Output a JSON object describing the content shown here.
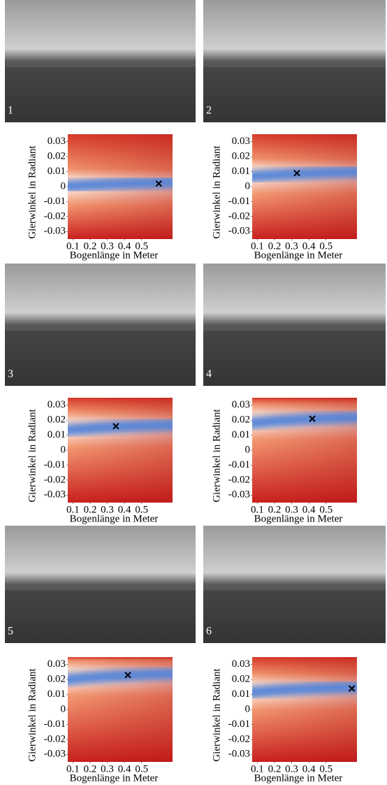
{
  "chart_data": [
    {
      "type": "heatmap",
      "panel_label": "1",
      "xlabel": "Bogenlänge in Meter",
      "ylabel": "Gierwinkel in Radiant",
      "xlim": [
        0.07,
        0.68
      ],
      "ylim": [
        -0.035,
        0.035
      ],
      "xticks": [
        0.1,
        0.2,
        0.3,
        0.4,
        0.5
      ],
      "yticks": [
        0.03,
        0.02,
        0.01,
        0,
        -0.01,
        -0.02,
        -0.03
      ],
      "marker": {
        "x": 0.6,
        "y": 0.002
      }
    },
    {
      "type": "heatmap",
      "panel_label": "2",
      "xlabel": "Bogenlänge in Meter",
      "ylabel": "Gierwinkel in Radiant",
      "xlim": [
        0.07,
        0.68
      ],
      "ylim": [
        -0.035,
        0.035
      ],
      "xticks": [
        0.1,
        0.2,
        0.3,
        0.4,
        0.5
      ],
      "yticks": [
        0.03,
        0.02,
        0.01,
        0,
        -0.01,
        -0.02,
        -0.03
      ],
      "marker": {
        "x": 0.33,
        "y": 0.009
      }
    },
    {
      "type": "heatmap",
      "panel_label": "3",
      "xlabel": "Bogenlänge in Meter",
      "ylabel": "Gierwinkel in Radiant",
      "xlim": [
        0.07,
        0.68
      ],
      "ylim": [
        -0.035,
        0.035
      ],
      "xticks": [
        0.1,
        0.2,
        0.3,
        0.4,
        0.5
      ],
      "yticks": [
        0.03,
        0.02,
        0.01,
        0,
        -0.01,
        -0.02,
        -0.03
      ],
      "marker": {
        "x": 0.35,
        "y": 0.016
      }
    },
    {
      "type": "heatmap",
      "panel_label": "4",
      "xlabel": "Bogenlänge in Meter",
      "ylabel": "Gierwinkel in Radiant",
      "xlim": [
        0.07,
        0.68
      ],
      "ylim": [
        -0.035,
        0.035
      ],
      "xticks": [
        0.1,
        0.2,
        0.3,
        0.4,
        0.5
      ],
      "yticks": [
        0.03,
        0.02,
        0.01,
        0,
        -0.01,
        -0.02,
        -0.03
      ],
      "marker": {
        "x": 0.42,
        "y": 0.021
      }
    },
    {
      "type": "heatmap",
      "panel_label": "5",
      "xlabel": "Bogenlänge in Meter",
      "ylabel": "Gierwinkel in Radiant",
      "xlim": [
        0.07,
        0.68
      ],
      "ylim": [
        -0.035,
        0.035
      ],
      "xticks": [
        0.1,
        0.2,
        0.3,
        0.4,
        0.5
      ],
      "yticks": [
        0.03,
        0.02,
        0.01,
        0,
        -0.01,
        -0.02,
        -0.03
      ],
      "marker": {
        "x": 0.42,
        "y": 0.023
      }
    },
    {
      "type": "heatmap",
      "panel_label": "6",
      "xlabel": "Bogenlänge in Meter",
      "ylabel": "Gierwinkel in Radiant",
      "xlim": [
        0.07,
        0.68
      ],
      "ylim": [
        -0.035,
        0.035
      ],
      "xticks": [
        0.1,
        0.2,
        0.3,
        0.4,
        0.5
      ],
      "yticks": [
        0.03,
        0.02,
        0.01,
        0,
        -0.01,
        -0.02,
        -0.03
      ],
      "marker": {
        "x": 0.65,
        "y": 0.014
      }
    }
  ]
}
